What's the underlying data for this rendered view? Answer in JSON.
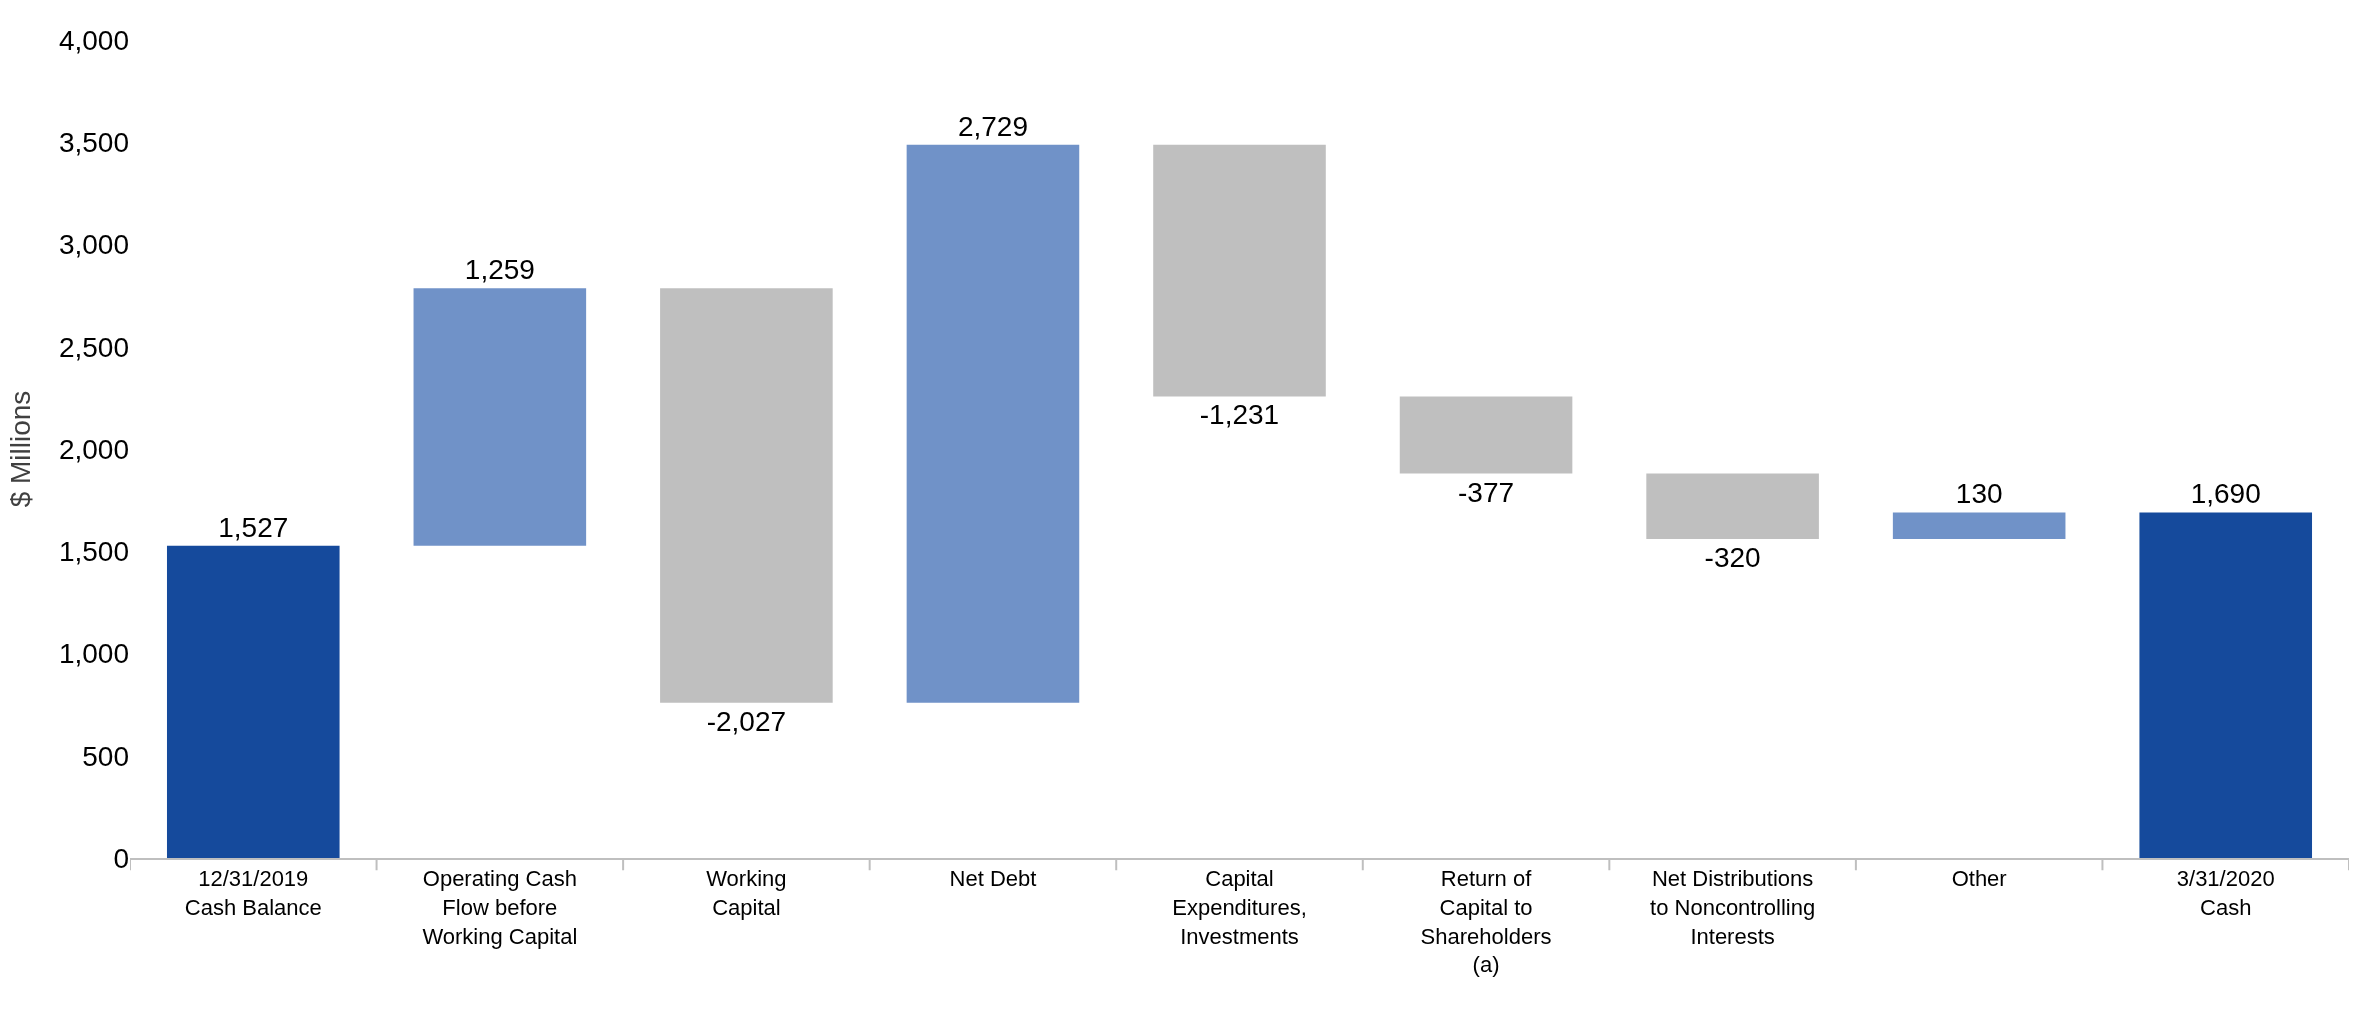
{
  "chart_data": {
    "type": "bar",
    "ylabel": "$ Millions",
    "categories": [
      "12/31/2019\nCash Balance",
      "Operating Cash\nFlow before\nWorking Capital",
      "Working\nCapital",
      "Net Debt",
      "Capital\nExpenditures,\nInvestments",
      "Return of\nCapital to\nShareholders\n(a)",
      "Net Distributions\nto Noncontrolling\nInterests",
      "Other",
      "3/31/2020\nCash"
    ],
    "values": [
      1527,
      1259,
      -2027,
      2729,
      -1231,
      -377,
      -320,
      130,
      1690
    ],
    "base": [
      0,
      1527,
      2786,
      759,
      3488,
      2257,
      1880,
      1560,
      0
    ],
    "colors": [
      "#154a9c",
      "#7092c8",
      "#bfbfbf",
      "#7092c8",
      "#bfbfbf",
      "#bfbfbf",
      "#bfbfbf",
      "#7092c8",
      "#154a9c"
    ],
    "value_labels": [
      "1,527",
      "1,259",
      "-2,027",
      "2,729",
      "-1,231",
      "-377",
      "-320",
      "130",
      "1,690"
    ],
    "ylim": [
      0,
      4000
    ],
    "yticks": [
      0,
      {
        "value": 500,
        "label": "500"
      },
      {
        "value": 1000,
        "label": "1,000"
      },
      {
        "value": 1500,
        "label": "1,500"
      },
      {
        "value": 2000,
        "label": "2,000"
      },
      {
        "value": 2500,
        "label": "2,500"
      },
      {
        "value": 3000,
        "label": "3,000"
      },
      {
        "value": 3500,
        "label": "3,500"
      },
      {
        "value": 4000,
        "label": "4,000"
      }
    ],
    "grid": false
  }
}
